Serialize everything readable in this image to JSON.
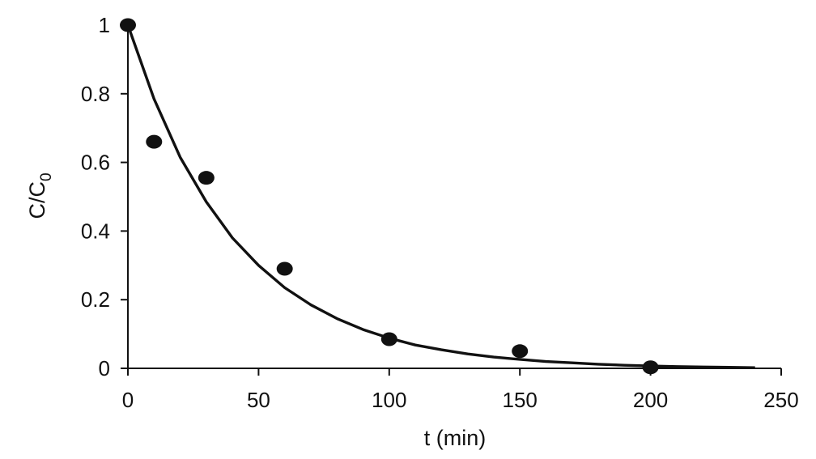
{
  "chart_data": {
    "type": "scatter",
    "title": "",
    "xlabel": "t (min)",
    "ylabel": "C/C0",
    "ylabel_main": "C/C",
    "ylabel_sub": "0",
    "xlim": [
      0,
      250
    ],
    "ylim": [
      0,
      1
    ],
    "x_ticks": [
      0,
      50,
      100,
      150,
      200,
      250
    ],
    "x_tick_labels": [
      "0",
      "50",
      "100",
      "150",
      "200",
      "250"
    ],
    "y_ticks": [
      0,
      0.2,
      0.4,
      0.6,
      0.8,
      1
    ],
    "y_tick_labels": [
      "0",
      "0.2",
      "0.4",
      "0.6",
      "0.8",
      "1"
    ],
    "grid": false,
    "legend": "none",
    "series": [
      {
        "kind": "markers",
        "x": [
          0,
          10,
          30,
          60,
          100,
          150,
          200
        ],
        "y": [
          1.0,
          0.66,
          0.555,
          0.29,
          0.085,
          0.05,
          0.003
        ]
      },
      {
        "kind": "line",
        "x": [
          0,
          10,
          20,
          30,
          40,
          50,
          60,
          70,
          80,
          90,
          100,
          110,
          120,
          130,
          140,
          150,
          160,
          170,
          180,
          190,
          200,
          210,
          220,
          230,
          240
        ],
        "y": [
          1.0,
          0.785,
          0.615,
          0.485,
          0.38,
          0.3,
          0.235,
          0.185,
          0.145,
          0.113,
          0.088,
          0.068,
          0.054,
          0.042,
          0.033,
          0.026,
          0.02,
          0.016,
          0.012,
          0.009,
          0.007,
          0.005,
          0.004,
          0.003,
          0.002
        ]
      }
    ],
    "colors": {
      "ink": "#111111",
      "background": "#ffffff"
    }
  }
}
